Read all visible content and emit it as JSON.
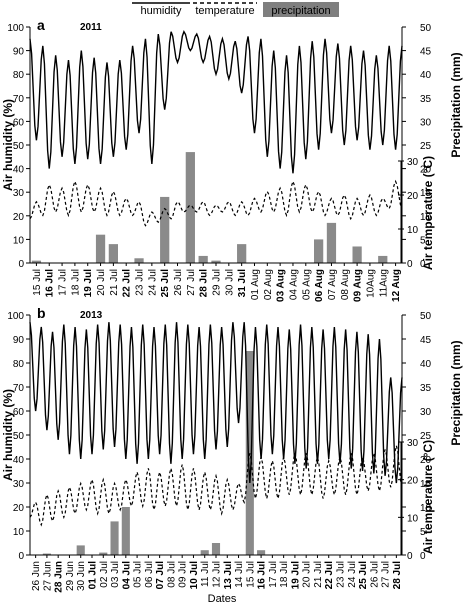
{
  "legend": {
    "placement": "top-center",
    "items": [
      {
        "label": "humidity",
        "style": "solid"
      },
      {
        "label": "temperature",
        "style": "dashed"
      },
      {
        "label": "precipitation",
        "style": "bar",
        "color": "#7f7f7f"
      }
    ]
  },
  "chart_data": [
    {
      "panel": "a",
      "year_label": "2011",
      "type": "line+bar",
      "xlabel": "",
      "ylabel_left": "Air humidity (%)",
      "ylabel_right_top": "Precipitation (mm)",
      "ylabel_right_bottom": "Air temperature (°C)",
      "humidity_ylim": [
        0,
        100
      ],
      "humidity_ticks": [
        0,
        10,
        20,
        30,
        40,
        50,
        60,
        70,
        80,
        90,
        100
      ],
      "precip_ylim": [
        0,
        50
      ],
      "precip_ticks": [
        0,
        5,
        10,
        15,
        20,
        25,
        30,
        35,
        40,
        45,
        50
      ],
      "temp_ylim": [
        0,
        30
      ],
      "temp_ticks": [
        0,
        10,
        20,
        30
      ],
      "days": [
        {
          "label": "15 Jul",
          "bold": false,
          "precip": 0.5,
          "hum_max": 95,
          "hum_min": 52,
          "t_max": 18,
          "t_min": 13
        },
        {
          "label": "16 Jul",
          "bold": true,
          "precip": 0,
          "hum_max": 92,
          "hum_min": 40,
          "t_max": 23,
          "t_min": 14
        },
        {
          "label": "17 Jul",
          "bold": false,
          "precip": 0,
          "hum_max": 88,
          "hum_min": 45,
          "t_max": 22,
          "t_min": 15
        },
        {
          "label": "18 Jul",
          "bold": false,
          "precip": 0,
          "hum_max": 86,
          "hum_min": 42,
          "t_max": 24,
          "t_min": 14
        },
        {
          "label": "19 Jul",
          "bold": true,
          "precip": 0,
          "hum_max": 90,
          "hum_min": 44,
          "t_max": 23,
          "t_min": 15
        },
        {
          "label": "20 Jul",
          "bold": false,
          "precip": 6,
          "hum_max": 87,
          "hum_min": 42,
          "t_max": 22,
          "t_min": 15
        },
        {
          "label": "21 Jul",
          "bold": false,
          "precip": 4,
          "hum_max": 85,
          "hum_min": 45,
          "t_max": 21,
          "t_min": 14
        },
        {
          "label": "22 Jul",
          "bold": true,
          "precip": 0,
          "hum_max": 86,
          "hum_min": 48,
          "t_max": 19,
          "t_min": 14
        },
        {
          "label": "23 Jul",
          "bold": false,
          "precip": 1,
          "hum_max": 92,
          "hum_min": 55,
          "t_max": 18,
          "t_min": 14
        },
        {
          "label": "24 Jul",
          "bold": false,
          "precip": 0,
          "hum_max": 95,
          "hum_min": 42,
          "t_max": 15,
          "t_min": 11
        },
        {
          "label": "25 Jul",
          "bold": true,
          "precip": 14,
          "hum_max": 97,
          "hum_min": 65,
          "t_max": 16,
          "t_min": 12
        },
        {
          "label": "26 Jul",
          "bold": false,
          "precip": 0,
          "hum_max": 98,
          "hum_min": 85,
          "t_max": 18,
          "t_min": 13
        },
        {
          "label": "27 Jul",
          "bold": false,
          "precip": 23.5,
          "hum_max": 98,
          "hum_min": 90,
          "t_max": 17,
          "t_min": 15
        },
        {
          "label": "28 Jul",
          "bold": true,
          "precip": 1.5,
          "hum_max": 97,
          "hum_min": 85,
          "t_max": 18,
          "t_min": 15
        },
        {
          "label": "29 Jul",
          "bold": false,
          "precip": 0.5,
          "hum_max": 96,
          "hum_min": 80,
          "t_max": 17,
          "t_min": 14
        },
        {
          "label": "30 Jul",
          "bold": false,
          "precip": 0,
          "hum_max": 95,
          "hum_min": 78,
          "t_max": 18,
          "t_min": 15
        },
        {
          "label": "31 Jul",
          "bold": true,
          "precip": 4,
          "hum_max": 94,
          "hum_min": 72,
          "t_max": 18,
          "t_min": 14
        },
        {
          "label": "01 Aug",
          "bold": false,
          "precip": 0,
          "hum_max": 96,
          "hum_min": 55,
          "t_max": 19,
          "t_min": 14
        },
        {
          "label": "02 Aug",
          "bold": false,
          "precip": 0,
          "hum_max": 95,
          "hum_min": 45,
          "t_max": 21,
          "t_min": 15
        },
        {
          "label": "03 Aug",
          "bold": true,
          "precip": 0,
          "hum_max": 90,
          "hum_min": 40,
          "t_max": 22,
          "t_min": 15
        },
        {
          "label": "04 Aug",
          "bold": false,
          "precip": 0,
          "hum_max": 88,
          "hum_min": 38,
          "t_max": 24,
          "t_min": 14
        },
        {
          "label": "05 Aug",
          "bold": false,
          "precip": 0,
          "hum_max": 92,
          "hum_min": 44,
          "t_max": 23,
          "t_min": 15
        },
        {
          "label": "06 Aug",
          "bold": true,
          "precip": 5,
          "hum_max": 94,
          "hum_min": 48,
          "t_max": 21,
          "t_min": 15
        },
        {
          "label": "07 Aug",
          "bold": false,
          "precip": 8.5,
          "hum_max": 95,
          "hum_min": 55,
          "t_max": 19,
          "t_min": 14
        },
        {
          "label": "08 Aug",
          "bold": false,
          "precip": 0,
          "hum_max": 93,
          "hum_min": 50,
          "t_max": 20,
          "t_min": 14
        },
        {
          "label": "09 Aug",
          "bold": true,
          "precip": 3.5,
          "hum_max": 92,
          "hum_min": 52,
          "t_max": 19,
          "t_min": 13
        },
        {
          "label": "10Aug",
          "bold": false,
          "precip": 0,
          "hum_max": 90,
          "hum_min": 48,
          "t_max": 20,
          "t_min": 14
        },
        {
          "label": "11Aug",
          "bold": false,
          "precip": 1.5,
          "hum_max": 88,
          "hum_min": 50,
          "t_max": 19,
          "t_min": 14
        },
        {
          "label": "12 Aug",
          "bold": true,
          "precip": 0,
          "hum_max": 92,
          "hum_min": 48,
          "t_max": 24,
          "t_min": 16
        }
      ]
    },
    {
      "panel": "b",
      "year_label": "2013",
      "type": "line+bar",
      "xlabel": "Dates",
      "ylabel_left": "Air humidity (%)",
      "ylabel_right_top": "Precipitation (mm)",
      "ylabel_right_bottom": "Air temperature (°C)",
      "humidity_ylim": [
        0,
        100
      ],
      "humidity_ticks": [
        0,
        10,
        20,
        30,
        40,
        50,
        60,
        70,
        80,
        90,
        100
      ],
      "precip_ylim": [
        0,
        50
      ],
      "precip_ticks": [
        0,
        5,
        10,
        15,
        20,
        25,
        30,
        35,
        40,
        45,
        50
      ],
      "temp_ylim": [
        0,
        30
      ],
      "temp_ticks": [
        0,
        10,
        20,
        30
      ],
      "days": [
        {
          "label": "26 Jun",
          "bold": false,
          "precip": 0,
          "hum_max": 97,
          "hum_min": 60,
          "t_max": 14,
          "t_min": 10
        },
        {
          "label": "27 Jun",
          "bold": false,
          "precip": 0.3,
          "hum_max": 95,
          "hum_min": 52,
          "t_max": 16,
          "t_min": 8
        },
        {
          "label": "28 Jun",
          "bold": true,
          "precip": 0,
          "hum_max": 93,
          "hum_min": 48,
          "t_max": 17,
          "t_min": 9
        },
        {
          "label": "29 Jun",
          "bold": false,
          "precip": 0,
          "hum_max": 96,
          "hum_min": 42,
          "t_max": 18,
          "t_min": 10
        },
        {
          "label": "30 Jun",
          "bold": false,
          "precip": 2,
          "hum_max": 95,
          "hum_min": 40,
          "t_max": 19,
          "t_min": 11
        },
        {
          "label": "01 Jul",
          "bold": true,
          "precip": 0,
          "hum_max": 94,
          "hum_min": 42,
          "t_max": 20,
          "t_min": 12
        },
        {
          "label": "02 Jul",
          "bold": false,
          "precip": 0.5,
          "hum_max": 96,
          "hum_min": 44,
          "t_max": 20,
          "t_min": 11
        },
        {
          "label": "03 Jul",
          "bold": false,
          "precip": 7,
          "hum_max": 97,
          "hum_min": 45,
          "t_max": 19,
          "t_min": 11
        },
        {
          "label": "04 Jul",
          "bold": true,
          "precip": 10,
          "hum_max": 96,
          "hum_min": 40,
          "t_max": 20,
          "t_min": 12
        },
        {
          "label": "05 Jul",
          "bold": false,
          "precip": 0,
          "hum_max": 95,
          "hum_min": 38,
          "t_max": 22,
          "t_min": 13
        },
        {
          "label": "06 Jul",
          "bold": false,
          "precip": 0,
          "hum_max": 96,
          "hum_min": 40,
          "t_max": 23,
          "t_min": 13
        },
        {
          "label": "07 Jul",
          "bold": true,
          "precip": 0,
          "hum_max": 95,
          "hum_min": 42,
          "t_max": 22,
          "t_min": 12
        },
        {
          "label": "08 Jul",
          "bold": false,
          "precip": 0,
          "hum_max": 96,
          "hum_min": 38,
          "t_max": 23,
          "t_min": 13
        },
        {
          "label": "09 Jul",
          "bold": false,
          "precip": 0,
          "hum_max": 97,
          "hum_min": 40,
          "t_max": 24,
          "t_min": 13
        },
        {
          "label": "10 Jul",
          "bold": true,
          "precip": 0,
          "hum_max": 96,
          "hum_min": 42,
          "t_max": 23,
          "t_min": 12
        },
        {
          "label": "11 Jul",
          "bold": false,
          "precip": 1,
          "hum_max": 95,
          "hum_min": 40,
          "t_max": 22,
          "t_min": 12
        },
        {
          "label": "12 Jul",
          "bold": false,
          "precip": 2.5,
          "hum_max": 96,
          "hum_min": 44,
          "t_max": 21,
          "t_min": 12
        },
        {
          "label": "13 Jul",
          "bold": true,
          "precip": 0,
          "hum_max": 95,
          "hum_min": 45,
          "t_max": 20,
          "t_min": 11
        },
        {
          "label": "14 Jul",
          "bold": false,
          "precip": 0,
          "hum_max": 97,
          "hum_min": 55,
          "t_max": 19,
          "t_min": 12
        },
        {
          "label": "15 Jul",
          "bold": false,
          "precip": 42.5,
          "hum_max": 97,
          "hum_min": 30,
          "t_max": 27,
          "t_min": 14
        },
        {
          "label": "16 Jul",
          "bold": true,
          "precip": 1,
          "hum_max": 95,
          "hum_min": 40,
          "t_max": 26,
          "t_min": 15
        },
        {
          "label": "17 Jul",
          "bold": false,
          "precip": 0,
          "hum_max": 96,
          "hum_min": 42,
          "t_max": 25,
          "t_min": 15
        },
        {
          "label": "18 Jul",
          "bold": false,
          "precip": 0,
          "hum_max": 95,
          "hum_min": 40,
          "t_max": 26,
          "t_min": 15
        },
        {
          "label": "19 Jul",
          "bold": true,
          "precip": 0,
          "hum_max": 94,
          "hum_min": 38,
          "t_max": 27,
          "t_min": 16
        },
        {
          "label": "20 Jul",
          "bold": false,
          "precip": 0,
          "hum_max": 96,
          "hum_min": 36,
          "t_max": 27,
          "t_min": 16
        },
        {
          "label": "21 Jul",
          "bold": false,
          "precip": 0,
          "hum_max": 95,
          "hum_min": 38,
          "t_max": 26,
          "t_min": 16
        },
        {
          "label": "22 Jul",
          "bold": true,
          "precip": 0,
          "hum_max": 94,
          "hum_min": 40,
          "t_max": 25,
          "t_min": 15
        },
        {
          "label": "23 Jul",
          "bold": false,
          "precip": 0,
          "hum_max": 95,
          "hum_min": 38,
          "t_max": 26,
          "t_min": 16
        },
        {
          "label": "24 Jul",
          "bold": false,
          "precip": 0,
          "hum_max": 94,
          "hum_min": 36,
          "t_max": 27,
          "t_min": 16
        },
        {
          "label": "25 Jul",
          "bold": true,
          "precip": 0,
          "hum_max": 93,
          "hum_min": 35,
          "t_max": 26,
          "t_min": 16
        },
        {
          "label": "26 Jul",
          "bold": false,
          "precip": 0,
          "hum_max": 92,
          "hum_min": 34,
          "t_max": 27,
          "t_min": 17
        },
        {
          "label": "27 Jul",
          "bold": false,
          "precip": 0,
          "hum_max": 90,
          "hum_min": 33,
          "t_max": 28,
          "t_min": 17
        },
        {
          "label": "28 Jul",
          "bold": true,
          "precip": 0,
          "hum_max": 74,
          "hum_min": 30,
          "t_max": 29,
          "t_min": 18
        }
      ]
    }
  ]
}
